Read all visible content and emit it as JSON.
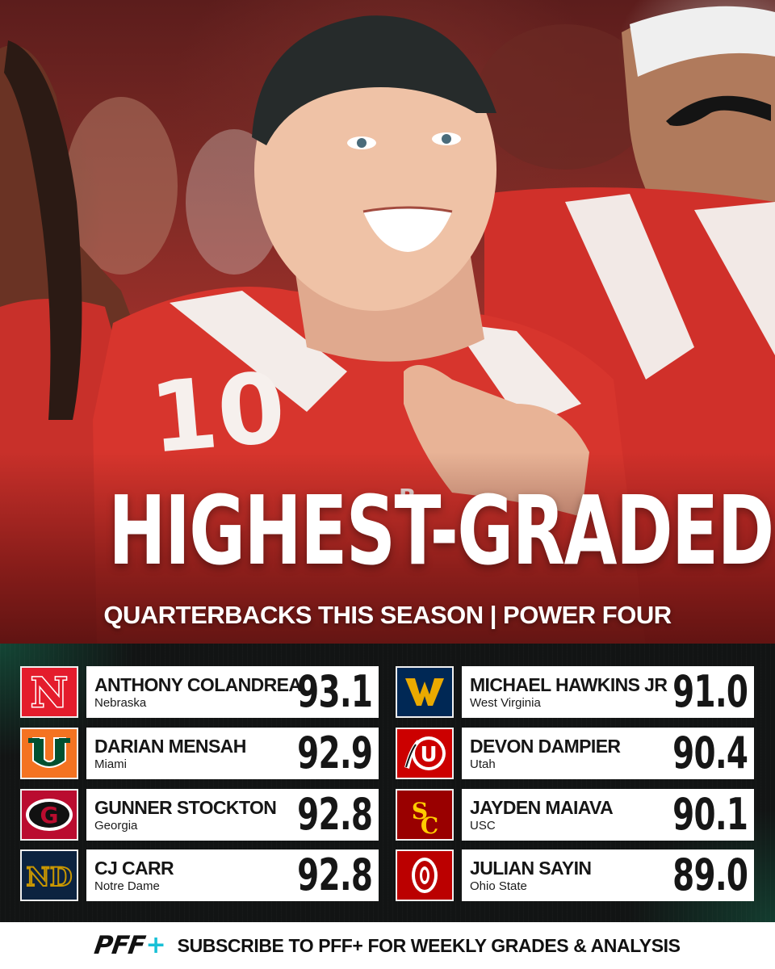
{
  "headline": "HIGHEST-GRADED",
  "subheadline": "QUARTERBACKS THIS SEASON | POWER FOUR",
  "hero": {
    "jersey_number": "10",
    "chest_patch": "B"
  },
  "colors": {
    "panel_bg": "#121414",
    "accent_green": "#146e50",
    "card_bg": "#ffffff",
    "pff_plus": "#18c0d6"
  },
  "players": [
    {
      "name": "ANTHONY COLANDREA",
      "team": "Nebraska",
      "grade": "93.1",
      "logo": "nebraska-n-icon",
      "logo_bg": "#e41c2c",
      "logo_letter": "N"
    },
    {
      "name": "DARIAN MENSAH",
      "team": "Miami",
      "grade": "92.9",
      "logo": "miami-u-icon",
      "logo_bg": "#f47321",
      "logo_letter": "U"
    },
    {
      "name": "GUNNER STOCKTON",
      "team": "Georgia",
      "grade": "92.8",
      "logo": "georgia-g-icon",
      "logo_bg": "#ba0c2f",
      "logo_letter": "G"
    },
    {
      "name": "CJ CARR",
      "team": "Notre Dame",
      "grade": "92.8",
      "logo": "notre-dame-nd-icon",
      "logo_bg": "#0c2340",
      "logo_letter": "ND"
    },
    {
      "name": "MICHAEL HAWKINS JR",
      "team": "West Virginia",
      "grade": "91.0",
      "logo": "west-virginia-wv-icon",
      "logo_bg": "#002855",
      "logo_letter": "WV"
    },
    {
      "name": "DEVON DAMPIER",
      "team": "Utah",
      "grade": "90.4",
      "logo": "utah-u-icon",
      "logo_bg": "#cc0000",
      "logo_letter": "U"
    },
    {
      "name": "JAYDEN MAIAVA",
      "team": "USC",
      "grade": "90.1",
      "logo": "usc-sc-icon",
      "logo_bg": "#990000",
      "logo_letter": "SC"
    },
    {
      "name": "JULIAN SAYIN",
      "team": "Ohio State",
      "grade": "89.0",
      "logo": "ohio-state-o-icon",
      "logo_bg": "#bb0000",
      "logo_letter": "O"
    }
  ],
  "footer": {
    "brand": "PFF",
    "brand_plus": "+",
    "cta": "SUBSCRIBE TO PFF+ FOR WEEKLY GRADES & ANALYSIS"
  }
}
